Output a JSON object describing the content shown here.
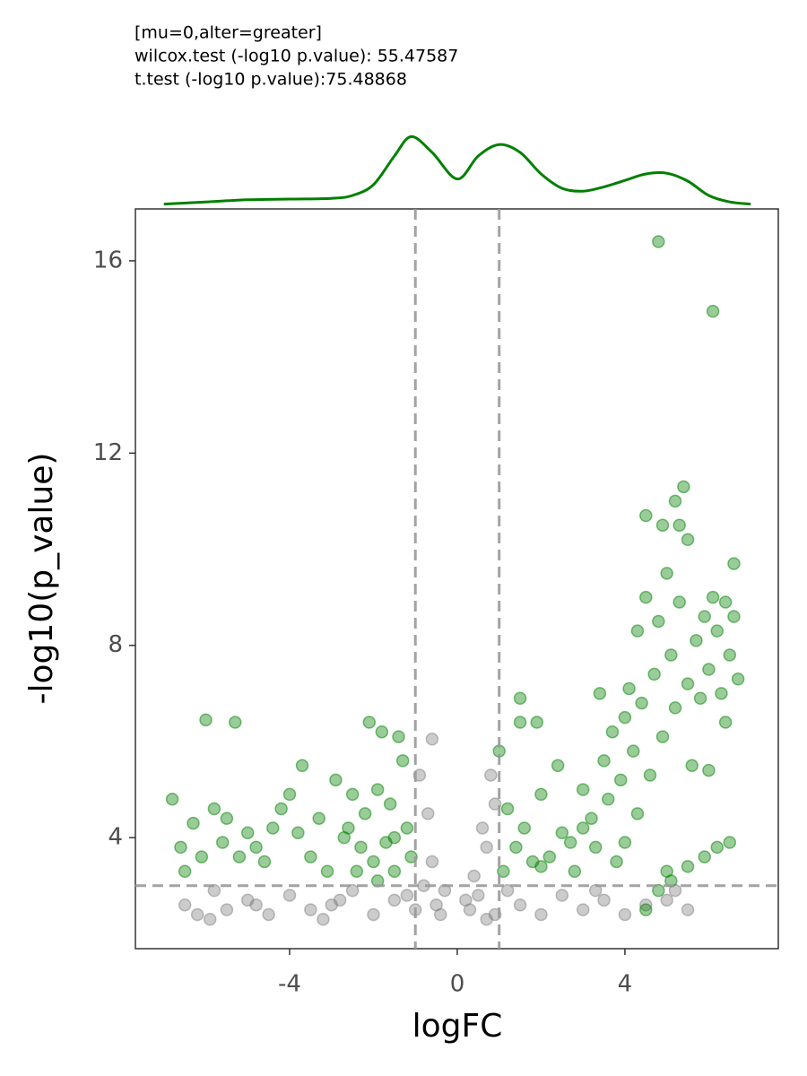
{
  "chart_data": {
    "type": "scatter",
    "annotations": [
      "[mu=0,alter=greater]",
      "wilcox.test (-log10 p.value): 55.47587",
      "t.test (-log10 p.value):75.48868"
    ],
    "x_label": "logFC",
    "y_label": "-log10(p_value)",
    "xlim": [
      -7.68,
      7.66
    ],
    "ylim": [
      1.69,
      17.08
    ],
    "xticks": [
      -4,
      0,
      4
    ],
    "yticks": [
      4,
      8,
      12,
      16
    ],
    "reference_lines": {
      "x": [
        -1,
        1
      ],
      "y": [
        3
      ],
      "color": "#999999"
    },
    "series": [
      {
        "color": "#808080",
        "x": [
          -6.5,
          -6.2,
          -5.8,
          -5.5,
          -5.0,
          -4.5,
          -4.0,
          -3.5,
          -3.0,
          -2.5,
          -2.0,
          -1.5,
          -1.0,
          -0.8,
          -0.6,
          -0.5,
          -0.7,
          -0.6,
          -0.9,
          -0.4,
          0.3,
          0.4,
          0.5,
          0.7,
          0.8,
          0.9,
          0.6,
          0.9,
          1.5,
          2.0,
          2.5,
          3.0,
          3.5,
          4.0,
          4.5,
          5.0,
          5.5,
          5.2,
          -3.2,
          -5.9,
          1.2,
          -1.2,
          -0.3,
          0.2,
          0.7,
          -2.8,
          3.3,
          -4.8
        ],
        "values": [
          2.6,
          2.4,
          2.9,
          2.5,
          2.7,
          2.4,
          2.8,
          2.5,
          2.6,
          2.9,
          2.4,
          2.7,
          2.5,
          3.0,
          3.5,
          2.6,
          4.5,
          6.05,
          5.3,
          2.4,
          2.5,
          3.2,
          2.8,
          3.8,
          5.3,
          4.7,
          4.2,
          2.4,
          2.6,
          2.4,
          2.8,
          2.5,
          2.7,
          2.4,
          2.6,
          2.7,
          2.5,
          2.9,
          2.3,
          2.3,
          2.9,
          2.8,
          2.9,
          2.7,
          2.3,
          2.7,
          2.9,
          2.6
        ]
      },
      {
        "color": "#008000",
        "x": [
          -6.8,
          -6.6,
          -6.5,
          -6.3,
          -6.1,
          -6.0,
          -5.8,
          -5.6,
          -5.5,
          -5.3,
          -5.2,
          -5.0,
          -4.8,
          -4.6,
          -4.4,
          -4.2,
          -4.0,
          -3.8,
          -3.7,
          -3.5,
          -3.3,
          -3.1,
          -2.9,
          -2.7,
          -2.5,
          -2.3,
          -2.2,
          -2.1,
          -2.0,
          -1.9,
          -1.8,
          -1.7,
          -1.6,
          -1.5,
          -1.4,
          -1.3,
          -1.2,
          -1.1,
          -2.4,
          -2.6,
          -1.9,
          -1.5,
          1.0,
          1.1,
          1.2,
          1.4,
          1.5,
          1.6,
          1.5,
          1.8,
          1.9,
          2.0,
          2.2,
          2.4,
          2.5,
          2.8,
          3.0,
          3.2,
          3.4,
          3.3,
          3.5,
          3.6,
          3.7,
          3.8,
          3.9,
          4.0,
          4.0,
          4.1,
          4.2,
          4.3,
          4.3,
          4.4,
          4.5,
          4.5,
          4.6,
          4.7,
          4.8,
          4.9,
          4.9,
          5.0,
          5.0,
          5.1,
          5.2,
          5.3,
          5.4,
          5.5,
          5.2,
          5.3,
          5.5,
          5.6,
          5.7,
          5.8,
          5.9,
          6.0,
          6.0,
          6.1,
          6.2,
          6.3,
          6.4,
          6.5,
          6.6,
          6.7,
          6.6,
          6.4,
          4.8,
          6.1,
          4.5,
          4.8,
          5.1,
          5.5,
          5.9,
          6.2,
          6.5,
          2.0,
          2.7,
          3.0
        ],
        "values": [
          4.8,
          3.8,
          3.3,
          4.3,
          3.6,
          6.45,
          4.6,
          3.9,
          4.4,
          6.4,
          3.6,
          4.1,
          3.8,
          3.5,
          4.2,
          4.6,
          4.9,
          4.1,
          5.5,
          3.6,
          4.4,
          3.3,
          5.2,
          4.0,
          4.9,
          3.8,
          4.5,
          6.4,
          3.5,
          5.0,
          6.2,
          3.9,
          4.7,
          3.3,
          6.1,
          5.6,
          4.2,
          3.6,
          3.3,
          4.2,
          3.1,
          4.0,
          5.8,
          3.3,
          4.6,
          3.8,
          6.4,
          4.2,
          6.9,
          3.5,
          6.4,
          4.9,
          3.6,
          5.5,
          4.1,
          3.3,
          5.0,
          4.4,
          7.0,
          3.8,
          5.6,
          4.8,
          6.2,
          3.5,
          5.2,
          6.5,
          3.9,
          7.1,
          5.8,
          8.3,
          4.5,
          6.8,
          9.0,
          10.7,
          5.3,
          7.4,
          8.5,
          10.5,
          6.1,
          9.5,
          3.3,
          7.8,
          11.0,
          10.5,
          11.3,
          10.2,
          6.7,
          8.9,
          7.2,
          5.5,
          8.1,
          6.9,
          8.6,
          7.5,
          5.4,
          9.0,
          8.3,
          7.0,
          8.9,
          7.8,
          9.7,
          7.3,
          8.6,
          6.4,
          16.4,
          14.95,
          2.5,
          2.9,
          3.1,
          3.4,
          3.6,
          3.8,
          3.9,
          3.4,
          3.9,
          4.2
        ]
      }
    ],
    "density": {
      "color": "#008000",
      "ylim": [
        0,
        0.1
      ],
      "x": [
        -7,
        -6,
        -5,
        -4,
        -3,
        -2.5,
        -2,
        -1.5,
        -1.1,
        -0.6,
        0,
        0.5,
        1.0,
        1.5,
        2,
        2.5,
        3,
        3.5,
        4,
        4.5,
        5,
        5.5,
        6,
        6.5,
        7
      ],
      "values": [
        0.003,
        0.006,
        0.009,
        0.01,
        0.011,
        0.015,
        0.03,
        0.07,
        0.097,
        0.075,
        0.038,
        0.07,
        0.086,
        0.075,
        0.045,
        0.025,
        0.021,
        0.027,
        0.036,
        0.045,
        0.046,
        0.035,
        0.015,
        0.006,
        0.003
      ]
    }
  }
}
